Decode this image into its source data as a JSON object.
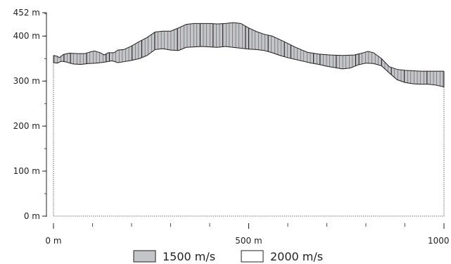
{
  "chart_data": {
    "type": "area",
    "title": "",
    "xlabel": "",
    "ylabel": "",
    "x_unit": "m",
    "y_unit": "m",
    "xlim": [
      0,
      1000
    ],
    "ylim": [
      0,
      452
    ],
    "x_ticks": [
      {
        "value": 0,
        "label": "0 m"
      },
      {
        "value": 500,
        "label": "500 m"
      },
      {
        "value": 1000,
        "label": "1000 m"
      }
    ],
    "x_minor_tick_step": 100,
    "y_ticks": [
      {
        "value": 0,
        "label": "0 m"
      },
      {
        "value": 100,
        "label": "100 m"
      },
      {
        "value": 200,
        "label": "200 m"
      },
      {
        "value": 300,
        "label": "300 m"
      },
      {
        "value": 400,
        "label": "400 m"
      },
      {
        "value": 452,
        "label": "452 m"
      }
    ],
    "grid": false,
    "legend_position": "bottom",
    "series": [
      {
        "name": "1500 m/s",
        "fill": "#c4c5c9",
        "stroke": "#231f20",
        "description_top": "surface",
        "top": [
          [
            0,
            357
          ],
          [
            10,
            355
          ],
          [
            15,
            352
          ],
          [
            25,
            359
          ],
          [
            40,
            362
          ],
          [
            60,
            361
          ],
          [
            80,
            361
          ],
          [
            95,
            365
          ],
          [
            105,
            367
          ],
          [
            120,
            363
          ],
          [
            130,
            358
          ],
          [
            140,
            363
          ],
          [
            155,
            363
          ],
          [
            165,
            369
          ],
          [
            180,
            370
          ],
          [
            200,
            378
          ],
          [
            220,
            388
          ],
          [
            240,
            397
          ],
          [
            260,
            409
          ],
          [
            280,
            411
          ],
          [
            300,
            411
          ],
          [
            320,
            418
          ],
          [
            340,
            426
          ],
          [
            360,
            428
          ],
          [
            400,
            428
          ],
          [
            420,
            427
          ],
          [
            440,
            428
          ],
          [
            460,
            430
          ],
          [
            480,
            428
          ],
          [
            500,
            418
          ],
          [
            520,
            410
          ],
          [
            540,
            404
          ],
          [
            560,
            400
          ],
          [
            590,
            388
          ],
          [
            620,
            375
          ],
          [
            650,
            364
          ],
          [
            680,
            360
          ],
          [
            710,
            358
          ],
          [
            740,
            357
          ],
          [
            770,
            358
          ],
          [
            790,
            362
          ],
          [
            805,
            366
          ],
          [
            820,
            363
          ],
          [
            840,
            350
          ],
          [
            860,
            332
          ],
          [
            880,
            326
          ],
          [
            900,
            324
          ],
          [
            920,
            323
          ],
          [
            940,
            322
          ],
          [
            960,
            322
          ],
          [
            980,
            322
          ],
          [
            1000,
            322
          ]
        ],
        "bottom": [
          [
            0,
            341
          ],
          [
            10,
            340
          ],
          [
            20,
            344
          ],
          [
            30,
            343
          ],
          [
            50,
            338
          ],
          [
            70,
            337
          ],
          [
            90,
            339
          ],
          [
            110,
            340
          ],
          [
            130,
            342
          ],
          [
            150,
            345
          ],
          [
            165,
            341
          ],
          [
            180,
            343
          ],
          [
            200,
            346
          ],
          [
            220,
            350
          ],
          [
            240,
            357
          ],
          [
            260,
            370
          ],
          [
            280,
            372
          ],
          [
            300,
            369
          ],
          [
            320,
            368
          ],
          [
            340,
            375
          ],
          [
            360,
            376
          ],
          [
            380,
            377
          ],
          [
            400,
            376
          ],
          [
            420,
            375
          ],
          [
            440,
            377
          ],
          [
            460,
            375
          ],
          [
            480,
            373
          ],
          [
            500,
            371
          ],
          [
            520,
            370
          ],
          [
            540,
            368
          ],
          [
            560,
            363
          ],
          [
            580,
            357
          ],
          [
            600,
            352
          ],
          [
            620,
            348
          ],
          [
            640,
            344
          ],
          [
            660,
            340
          ],
          [
            680,
            337
          ],
          [
            700,
            333
          ],
          [
            720,
            330
          ],
          [
            740,
            327
          ],
          [
            760,
            329
          ],
          [
            780,
            336
          ],
          [
            800,
            340
          ],
          [
            820,
            339
          ],
          [
            840,
            334
          ],
          [
            860,
            318
          ],
          [
            880,
            303
          ],
          [
            900,
            297
          ],
          [
            920,
            294
          ],
          [
            940,
            293
          ],
          [
            960,
            293
          ],
          [
            980,
            291
          ],
          [
            1000,
            287
          ]
        ]
      },
      {
        "name": "2000 m/s",
        "fill": "#ffffff",
        "stroke": "#231f20",
        "description": "region below 1500 m/s layer down to 0 m"
      }
    ]
  }
}
